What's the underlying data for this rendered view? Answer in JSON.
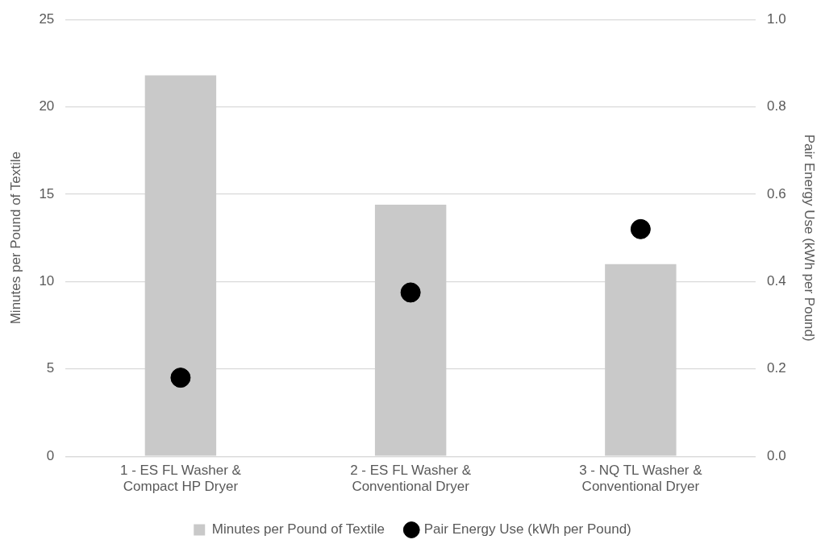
{
  "chart_data": {
    "type": "bar",
    "categories": [
      "1 - ES FL Washer & Compact HP Dryer",
      "2 - ES FL Washer & Conventional Dryer",
      "3 - NQ TL Washer & Conventional Dryer"
    ],
    "ylabel": "Minutes per Pound of Textile",
    "y2label": "Pair Energy Use (kWh per Pound)",
    "series": [
      {
        "name": "Minutes per Pound of Textile",
        "color": "#c9c9c9",
        "values": [
          21.8,
          14.4,
          11.0
        ]
      },
      {
        "name": "Pair Energy Use (kWh per Pound)",
        "type": "scatter",
        "axis": "y2",
        "color": "#000000",
        "values": [
          0.18,
          0.375,
          0.52
        ]
      }
    ],
    "ylim": [
      0,
      25
    ],
    "yticks": [
      0,
      5,
      10,
      15,
      20,
      25
    ],
    "y2lim": [
      0,
      1
    ],
    "y2ticks": [
      {
        "value": 0,
        "label": "0.0"
      },
      {
        "value": 0.2,
        "label": "0.2"
      },
      {
        "value": 0.4,
        "label": "0.4"
      },
      {
        "value": 0.6,
        "label": "0.6"
      },
      {
        "value": 0.8,
        "label": "0.8"
      },
      {
        "value": 1,
        "label": "1.0"
      }
    ],
    "grid": "y",
    "legend": "bottom",
    "marker": "circle"
  }
}
